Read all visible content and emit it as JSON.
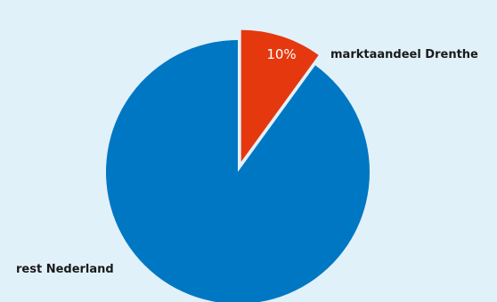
{
  "chart_data": {
    "type": "pie",
    "slices": [
      {
        "label": "marktaandeel Drenthe",
        "value": 10,
        "value_label": "10%",
        "color": "#e5380f",
        "exploded": true
      },
      {
        "label": "rest Nederland",
        "value": 90,
        "value_label": "",
        "color": "#0077c3",
        "exploded": false
      }
    ],
    "background": "#e1f1fa"
  }
}
